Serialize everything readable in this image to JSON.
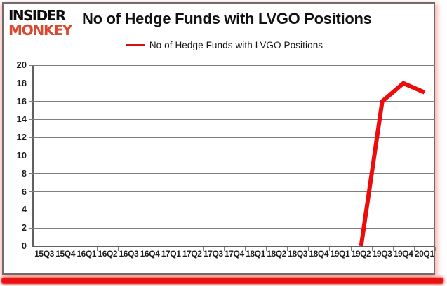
{
  "brand": {
    "line1": "INSIDER",
    "line2": "MONKEY"
  },
  "header": {
    "title": "No of Hedge Funds with LVGO Positions"
  },
  "legend": {
    "label": "No of Hedge Funds with LVGO Positions",
    "line_color": "#dd0d0d"
  },
  "colors": {
    "series_red": "#ed0c0c",
    "logo_red": "#d8492f",
    "gridline_gray": "#7d7d7d",
    "axis_gray": "#606060",
    "card_border_gray": "#6e6e6e",
    "bottom_bar_red": "#e81212",
    "text_black": "#1c1c1c"
  },
  "chart_data": {
    "type": "line",
    "title": "No of Hedge Funds with LVGO Positions",
    "categories": [
      "15Q3",
      "15Q4",
      "16Q1",
      "16Q2",
      "16Q3",
      "16Q4",
      "17Q1",
      "17Q2",
      "17Q3",
      "17Q4",
      "18Q1",
      "18Q2",
      "18Q3",
      "18Q4",
      "19Q1",
      "19Q2",
      "19Q3",
      "19Q4",
      "20Q1"
    ],
    "series": [
      {
        "name": "No of Hedge Funds with LVGO Positions",
        "color": "#ed0c0c",
        "values": [
          null,
          null,
          null,
          null,
          null,
          null,
          null,
          null,
          null,
          null,
          null,
          null,
          null,
          null,
          null,
          0,
          16,
          18,
          17
        ]
      }
    ],
    "ylim": [
      0,
      20
    ],
    "ytick_step": 2,
    "yticks": [
      0,
      2,
      4,
      6,
      8,
      10,
      12,
      14,
      16,
      18,
      20
    ],
    "xlabel": "",
    "ylabel": "",
    "grid": "horizontal",
    "legend_position": "top-center",
    "plot_background": "#ffffff",
    "line_width": 6
  }
}
